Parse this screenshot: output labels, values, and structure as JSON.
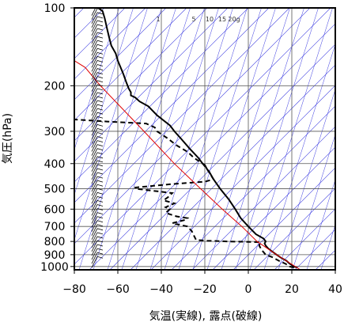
{
  "chart_data": {
    "type": "line",
    "title": "",
    "xlabel": "気温(実線), 露点(破線)",
    "ylabel": "気圧(hPa)",
    "xlim": [
      -80,
      40
    ],
    "ylim": [
      1030,
      100
    ],
    "y_scale": "log",
    "x_ticks": [
      -80,
      -60,
      -40,
      -20,
      0,
      20,
      40
    ],
    "x_tick_labels": [
      "−80",
      "−60",
      "−40",
      "−20",
      "0",
      "20",
      "40"
    ],
    "y_ticks": [
      100,
      200,
      300,
      400,
      500,
      600,
      700,
      800,
      900,
      1000
    ],
    "y_tick_labels": [
      "100",
      "200",
      "300",
      "400",
      "500",
      "600",
      "700",
      "800",
      "900",
      "1000"
    ],
    "mixing_ratio_labels": [
      "1",
      "5",
      "10",
      "15",
      "20g"
    ],
    "grid": true,
    "series": [
      {
        "style": "solid",
        "color": "#000000",
        "points": [
          [
            1010,
            22.5
          ],
          [
            1000,
            21
          ],
          [
            975,
            19
          ],
          [
            950,
            17.5
          ],
          [
            925,
            15
          ],
          [
            900,
            13
          ],
          [
            870,
            10.5
          ],
          [
            850,
            9
          ],
          [
            830,
            8
          ],
          [
            815,
            7.5
          ],
          [
            800,
            8
          ],
          [
            780,
            7
          ],
          [
            750,
            3.5
          ],
          [
            700,
            0
          ],
          [
            650,
            -3.5
          ],
          [
            600,
            -6
          ],
          [
            550,
            -9
          ],
          [
            500,
            -13
          ],
          [
            460,
            -16
          ],
          [
            430,
            -18
          ],
          [
            420,
            -19
          ],
          [
            405,
            -20
          ],
          [
            400,
            -21
          ],
          [
            380,
            -23
          ],
          [
            350,
            -27
          ],
          [
            320,
            -31
          ],
          [
            300,
            -34
          ],
          [
            285,
            -36
          ],
          [
            260,
            -42
          ],
          [
            240,
            -46
          ],
          [
            230,
            -50
          ],
          [
            222,
            -52
          ],
          [
            218,
            -54
          ],
          [
            212,
            -54
          ],
          [
            205,
            -55
          ],
          [
            195,
            -56
          ],
          [
            180,
            -57.5
          ],
          [
            160,
            -60
          ],
          [
            150,
            -61
          ],
          [
            140,
            -63
          ],
          [
            130,
            -64
          ],
          [
            120,
            -65
          ],
          [
            110,
            -66
          ],
          [
            103,
            -67
          ],
          [
            100,
            -69
          ]
        ]
      },
      {
        "style": "dashed",
        "color": "#000000",
        "points": [
          [
            1010,
            21
          ],
          [
            1000,
            19
          ],
          [
            975,
            17
          ],
          [
            950,
            14
          ],
          [
            920,
            11
          ],
          [
            900,
            8
          ],
          [
            860,
            6
          ],
          [
            830,
            5
          ],
          [
            805,
            5.5
          ],
          [
            800,
            -10
          ],
          [
            795,
            -19
          ],
          [
            790,
            -24
          ],
          [
            760,
            -25
          ],
          [
            730,
            -26
          ],
          [
            700,
            -28
          ],
          [
            680,
            -35
          ],
          [
            660,
            -29
          ],
          [
            650,
            -28
          ],
          [
            640,
            -33
          ],
          [
            620,
            -38
          ],
          [
            600,
            -36
          ],
          [
            590,
            -38
          ],
          [
            570,
            -34
          ],
          [
            555,
            -39
          ],
          [
            540,
            -37
          ],
          [
            520,
            -35
          ],
          [
            500,
            -52
          ],
          [
            495,
            -52
          ],
          [
            480,
            -35
          ],
          [
            470,
            -20
          ],
          [
            460,
            -16
          ],
          [
            420,
            -19
          ],
          [
            400,
            -21
          ],
          [
            380,
            -25
          ],
          [
            360,
            -28
          ],
          [
            340,
            -33
          ],
          [
            320,
            -37
          ],
          [
            300,
            -42
          ],
          [
            290,
            -43
          ],
          [
            280,
            -47
          ],
          [
            275,
            -65
          ],
          [
            270,
            -80
          ]
        ]
      },
      {
        "style": "solid",
        "color": "#e00000",
        "points": [
          [
            1030,
            24
          ],
          [
            900,
            13
          ],
          [
            800,
            4
          ],
          [
            700,
            -3
          ],
          [
            600,
            -12
          ],
          [
            500,
            -22
          ],
          [
            400,
            -34
          ],
          [
            300,
            -48
          ],
          [
            200,
            -68
          ],
          [
            170,
            -75
          ],
          [
            160,
            -80
          ]
        ]
      }
    ],
    "wind_barbs_x": -72
  }
}
